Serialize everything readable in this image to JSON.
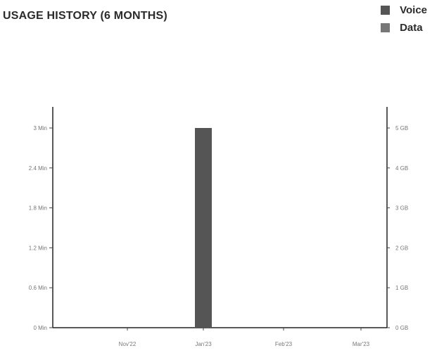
{
  "title": "USAGE HISTORY (6 MONTHS)",
  "legend": [
    {
      "label": "Voice",
      "color": "#555555"
    },
    {
      "label": "Data",
      "color": "#777777"
    }
  ],
  "chart_data": {
    "type": "bar",
    "title": "USAGE HISTORY (6 MONTHS)",
    "categories": [
      "Nov'22",
      "Jan'23",
      "Feb'23",
      "Mar'23"
    ],
    "series": [
      {
        "name": "Voice",
        "axis": "left",
        "color": "#555555",
        "values": [
          0,
          3.0,
          0,
          0
        ]
      },
      {
        "name": "Data",
        "axis": "right",
        "color": "#777777",
        "values": [
          0,
          0,
          0,
          0
        ]
      }
    ],
    "y_left": {
      "ticks": [
        "0 Min",
        "0.6 Min",
        "1.2 Min",
        "1.8 Min",
        "2.4 Min",
        "3 Min"
      ],
      "range": [
        0,
        3
      ]
    },
    "y_right": {
      "ticks": [
        "0 GB",
        "1 GB",
        "2 GB",
        "3 GB",
        "4 GB",
        "5 GB"
      ],
      "range": [
        0,
        5
      ]
    },
    "grid": false,
    "legend_position": "top-right"
  }
}
